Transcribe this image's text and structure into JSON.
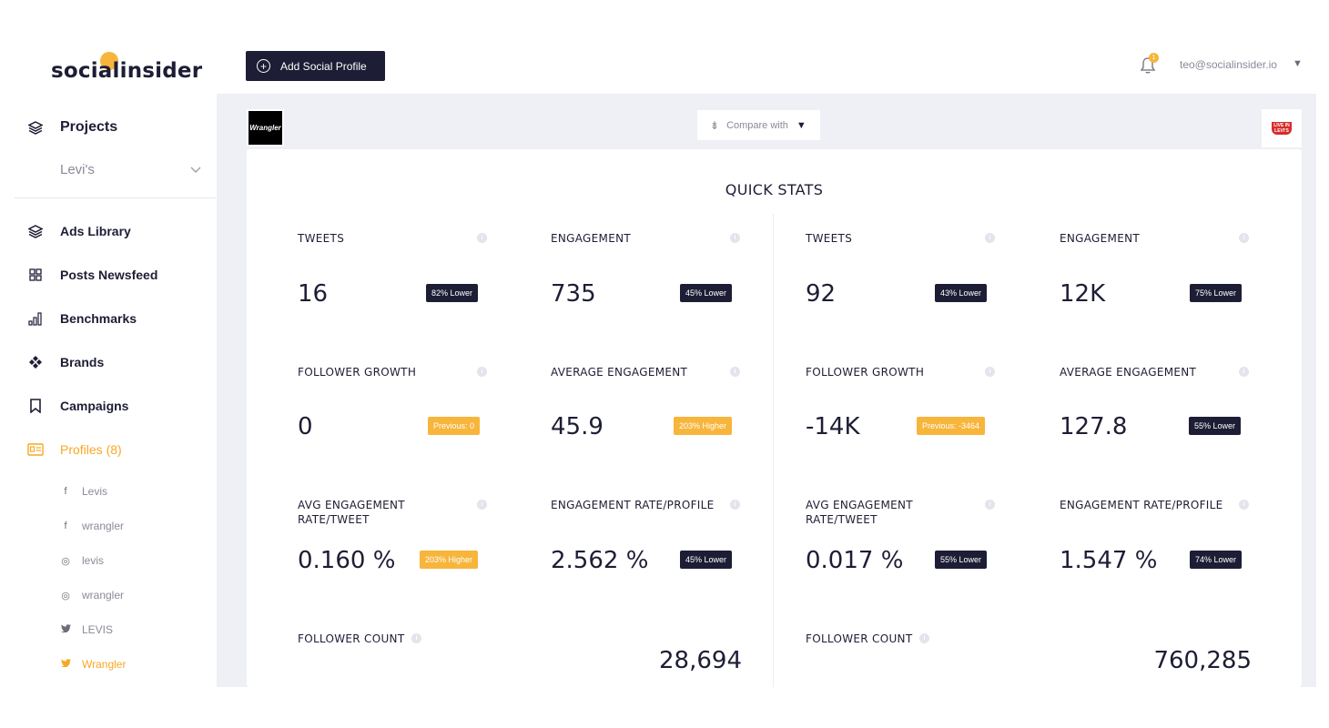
{
  "brand": {
    "logo_text": "socialinsider"
  },
  "sidebar": {
    "projects_label": "Projects",
    "project_selected": "Levi's",
    "items": [
      {
        "label": "Ads Library",
        "icon": "layers-icon"
      },
      {
        "label": "Posts Newsfeed",
        "icon": "grid-icon"
      },
      {
        "label": "Benchmarks",
        "icon": "bar-chart-icon"
      },
      {
        "label": "Brands",
        "icon": "brands-icon"
      },
      {
        "label": "Campaigns",
        "icon": "bookmark-icon"
      },
      {
        "label": "Profiles (8)",
        "icon": "profile-card-icon"
      }
    ],
    "profiles": [
      {
        "network": "facebook",
        "glyph": "f",
        "name": "Levis"
      },
      {
        "network": "facebook",
        "glyph": "f",
        "name": "wrangler"
      },
      {
        "network": "instagram",
        "glyph": "◎",
        "name": "levis"
      },
      {
        "network": "instagram",
        "glyph": "◎",
        "name": "wrangler"
      },
      {
        "network": "twitter",
        "glyph": "🐦",
        "name": "LEVIS"
      },
      {
        "network": "twitter",
        "glyph": "🐦",
        "name": "Wrangler"
      }
    ]
  },
  "header": {
    "add_profile_label": "Add Social Profile",
    "notification_count": "1",
    "user_email": "teo@socialinsider.io"
  },
  "compare": {
    "label": "Compare with"
  },
  "profiles_bar": {
    "left_logo_text": "Wrangler",
    "right_logo_text": "LIVE IN LEVI'S"
  },
  "quick_stats": {
    "title": "QUICK STATS",
    "left": {
      "tweets": {
        "label": "TWEETS",
        "value": "16",
        "badge": "82% Lower"
      },
      "engagement": {
        "label": "ENGAGEMENT",
        "value": "735",
        "badge": "45% Lower"
      },
      "follower_growth": {
        "label": "FOLLOWER GROWTH",
        "value": "0",
        "badge": "Previous: 0"
      },
      "average_engagement": {
        "label": "AVERAGE ENGAGEMENT",
        "value": "45.9",
        "badge": "203% Higher"
      },
      "avg_engagement_rate": {
        "label": "AVG ENGAGEMENT RATE/TWEET",
        "value": "0.160 %",
        "badge": "203% Higher"
      },
      "engagement_rate_profile": {
        "label": "ENGAGEMENT RATE/PROFILE",
        "value": "2.562 %",
        "badge": "45% Lower"
      },
      "follower_count": {
        "label": "FOLLOWER COUNT",
        "value": "28,694"
      }
    },
    "right": {
      "tweets": {
        "label": "TWEETS",
        "value": "92",
        "badge": "43% Lower"
      },
      "engagement": {
        "label": "ENGAGEMENT",
        "value": "12K",
        "badge": "75% Lower"
      },
      "follower_growth": {
        "label": "FOLLOWER GROWTH",
        "value": "-14K",
        "badge": "Previous: -3464"
      },
      "average_engagement": {
        "label": "AVERAGE ENGAGEMENT",
        "value": "127.8",
        "badge": "55% Lower"
      },
      "avg_engagement_rate": {
        "label": "AVG ENGAGEMENT RATE/TWEET",
        "value": "0.017 %",
        "badge": "55% Lower"
      },
      "engagement_rate_profile": {
        "label": "ENGAGEMENT RATE/PROFILE",
        "value": "1.547 %",
        "badge": "74% Lower"
      },
      "follower_count": {
        "label": "FOLLOWER COUNT",
        "value": "760,285"
      }
    }
  },
  "colors": {
    "dark": "#1d1d35",
    "accent": "#f7b53b",
    "background": "#eef0f6"
  }
}
